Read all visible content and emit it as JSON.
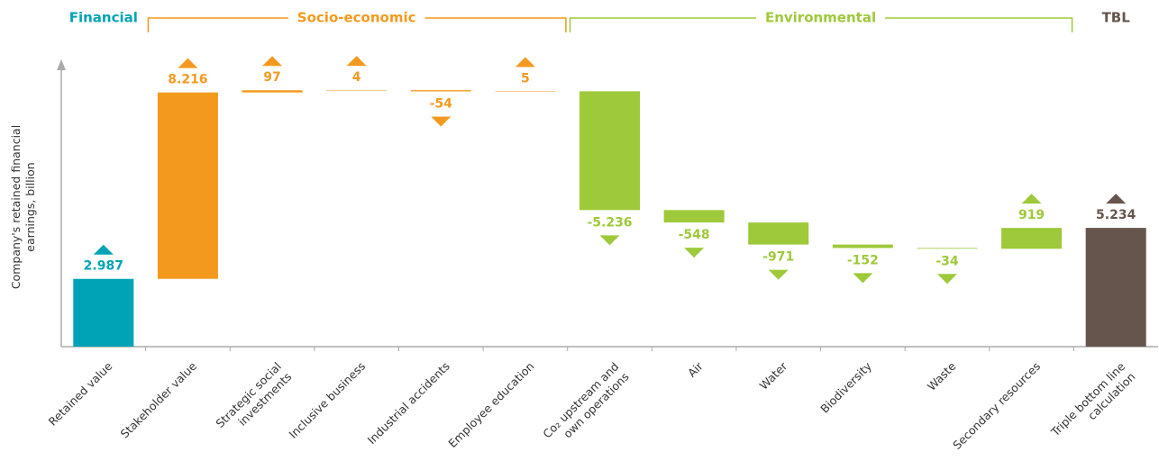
{
  "chart_data": {
    "type": "waterfall",
    "y_label": "Company's retained financial\nearnings, billion",
    "categories": [
      "Retained value",
      "Stakeholder value",
      "Strategic social\ninvestments",
      "Inclusive business",
      "Industrial accidents",
      "Employee education",
      "Co₂ upstream and\nown operations",
      "Air",
      "Water",
      "Biodiversity",
      "Waste",
      "Secondary resources",
      "Triple bottom line\ncalculation"
    ],
    "ylim": [
      0,
      12500
    ],
    "series": [
      {
        "name": "Financial",
        "color": "#00a3b5",
        "values": [
          2987,
          null,
          null,
          null,
          null,
          null,
          null,
          null,
          null,
          null,
          null,
          null,
          null
        ],
        "value_labels": [
          "2.987",
          null,
          null,
          null,
          null,
          null,
          null,
          null,
          null,
          null,
          null,
          null,
          null
        ]
      },
      {
        "name": "Socio-economic",
        "color": "#f39a1e",
        "values": [
          null,
          8216,
          97,
          4,
          -54,
          5,
          null,
          null,
          null,
          null,
          null,
          null,
          null
        ],
        "value_labels": [
          null,
          "8.216",
          "97",
          "4",
          "-54",
          "5",
          null,
          null,
          null,
          null,
          null,
          null,
          null
        ]
      },
      {
        "name": "Environmental",
        "color": "#9ec93a",
        "values": [
          null,
          null,
          null,
          null,
          null,
          null,
          -5236,
          -548,
          -971,
          -152,
          -34,
          919,
          null
        ],
        "value_labels": [
          null,
          null,
          null,
          null,
          null,
          null,
          "-5.236",
          "-548",
          "-971",
          "-152",
          "-34",
          "919",
          null
        ]
      },
      {
        "name": "TBL",
        "color": "#65554c",
        "total": true,
        "values": [
          null,
          null,
          null,
          null,
          null,
          null,
          null,
          null,
          null,
          null,
          null,
          null,
          5234
        ],
        "value_labels": [
          null,
          null,
          null,
          null,
          null,
          null,
          null,
          null,
          null,
          null,
          null,
          null,
          "5.234"
        ]
      }
    ]
  }
}
